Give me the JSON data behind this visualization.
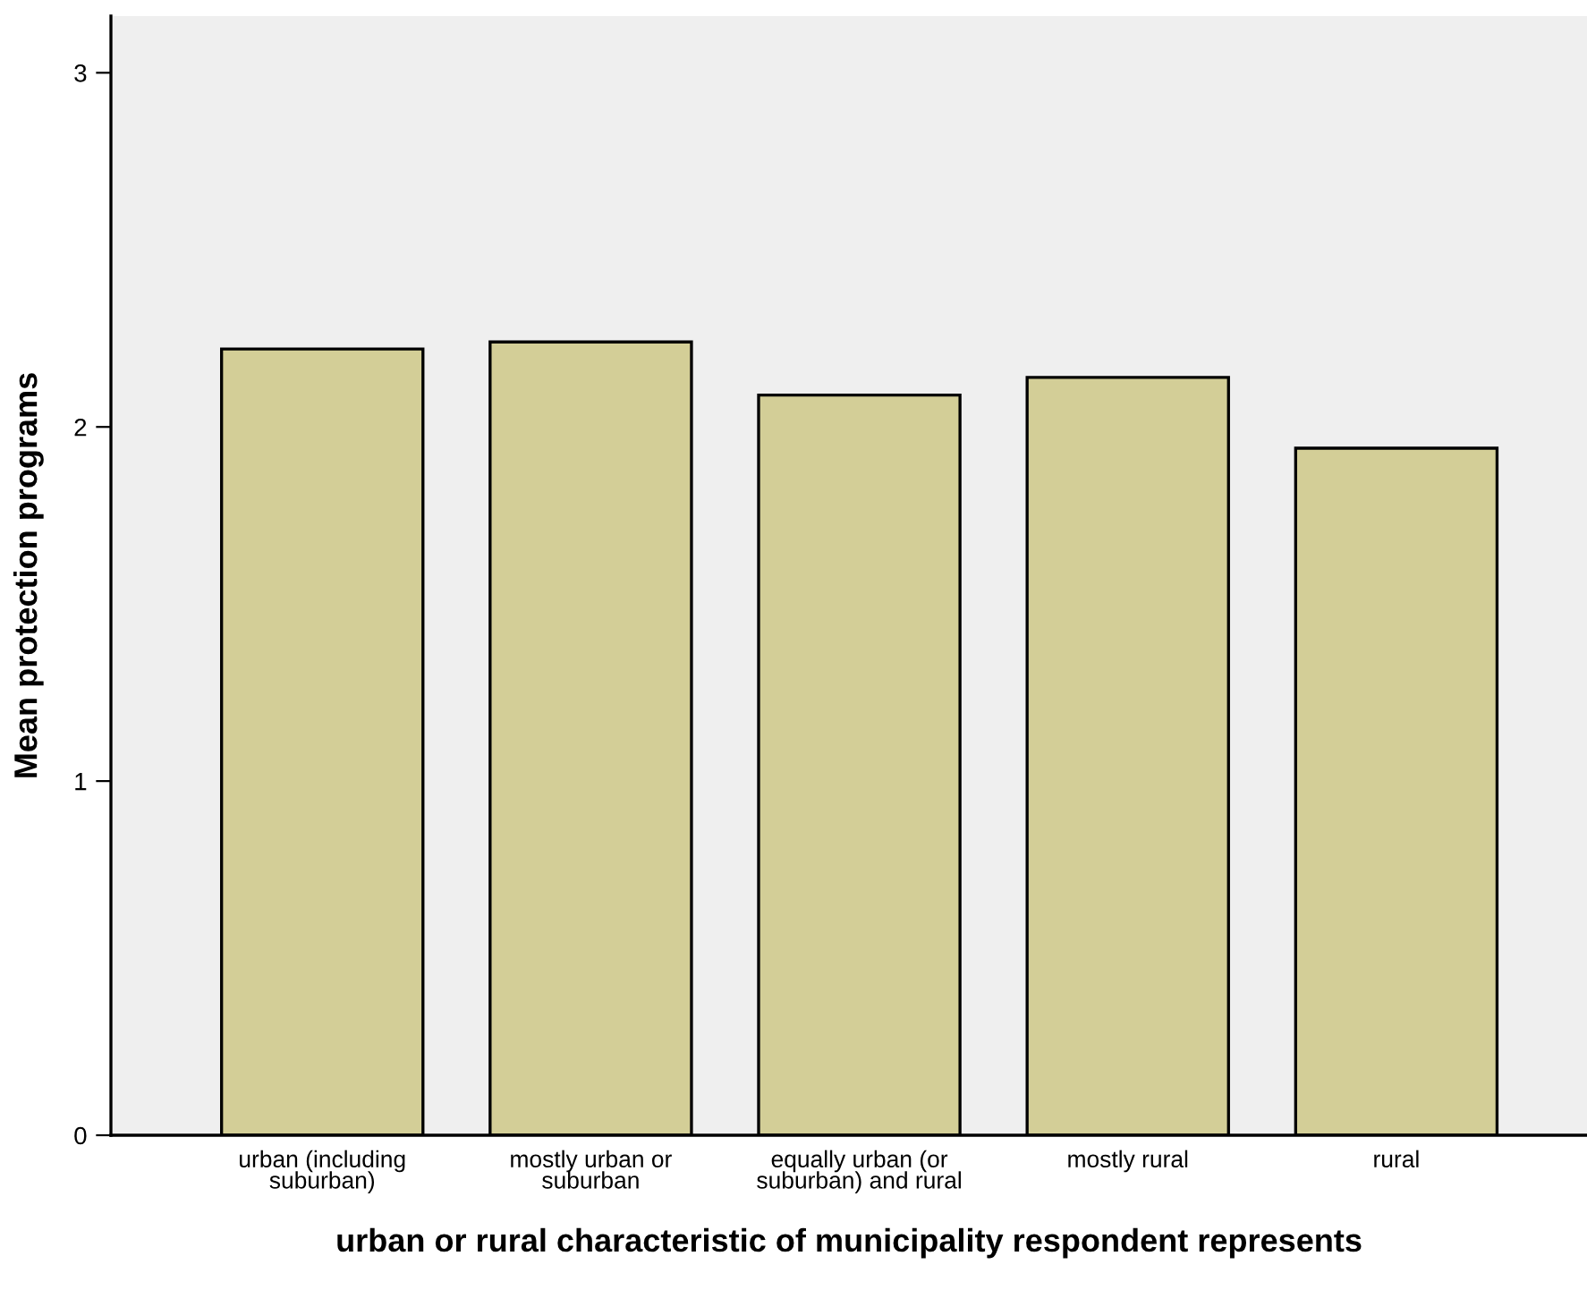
{
  "chart_data": {
    "type": "bar",
    "xlabel": "urban or rural characteristic of municipality respondent represents",
    "ylabel": "Mean protection programs",
    "categories": [
      "urban (including\nsuburban)",
      "mostly urban or\nsuburban",
      "equally urban (or\nsuburban) and rural",
      "mostly rural",
      "rural"
    ],
    "values": [
      2.22,
      2.24,
      2.09,
      2.14,
      1.94
    ],
    "color": "#d3ce97",
    "ylim": [
      0,
      3.16
    ],
    "yticks": [
      0,
      1,
      2,
      3
    ],
    "grid": false,
    "legend": false
  }
}
